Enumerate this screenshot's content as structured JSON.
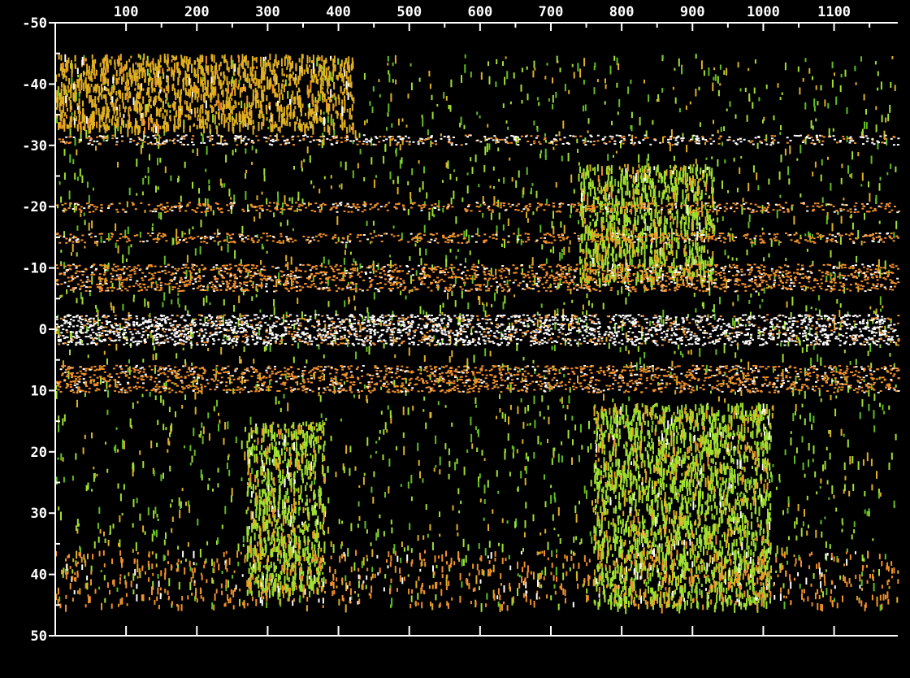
{
  "chart_data": {
    "type": "heatmap",
    "title": "",
    "xlabel": "",
    "ylabel": "",
    "xlim": [
      0,
      1190
    ],
    "ylim": [
      -50,
      50
    ],
    "y_inverted": true,
    "x_tick_labels": [
      "100",
      "200",
      "300",
      "400",
      "500",
      "600",
      "700",
      "800",
      "900",
      "1000",
      "1100"
    ],
    "x_tick_values": [
      100,
      200,
      300,
      400,
      500,
      600,
      700,
      800,
      900,
      1000,
      1100
    ],
    "y_tick_labels": [
      "-50",
      "-40",
      "-30",
      "-20",
      "-10",
      "0",
      "10",
      "20",
      "30",
      "40",
      "50"
    ],
    "y_tick_values": [
      -50,
      -40,
      -30,
      -20,
      -10,
      0,
      10,
      20,
      30,
      40,
      50
    ],
    "data_extent_y": [
      -45,
      45
    ],
    "background": "#000000",
    "colors": {
      "axis": "#ffffff",
      "strong": "#ffffff",
      "high": "#f0902a",
      "mid": "#e0b020",
      "low": "#9fe030",
      "lowest": "#5fbf20"
    },
    "bands": [
      {
        "y": -31,
        "color": "strong",
        "description": "dotted line"
      },
      {
        "y": -20,
        "color": "high"
      },
      {
        "y": -15,
        "color": "high"
      },
      {
        "y": -8.5,
        "color": "high"
      },
      {
        "y": 0,
        "color": "strong"
      },
      {
        "y": 8,
        "color": "high"
      }
    ],
    "clusters": [
      {
        "x_range": [
          740,
          930
        ],
        "y_range": [
          -27,
          -8
        ],
        "color": "low"
      },
      {
        "x_range": [
          760,
          1010
        ],
        "y_range": [
          12,
          45
        ],
        "color": "low"
      },
      {
        "x_range": [
          0,
          420
        ],
        "y_range": [
          -45,
          -33
        ],
        "color": "mid"
      },
      {
        "x_range": [
          270,
          380
        ],
        "y_range": [
          15,
          43
        ],
        "color": "low"
      }
    ]
  }
}
